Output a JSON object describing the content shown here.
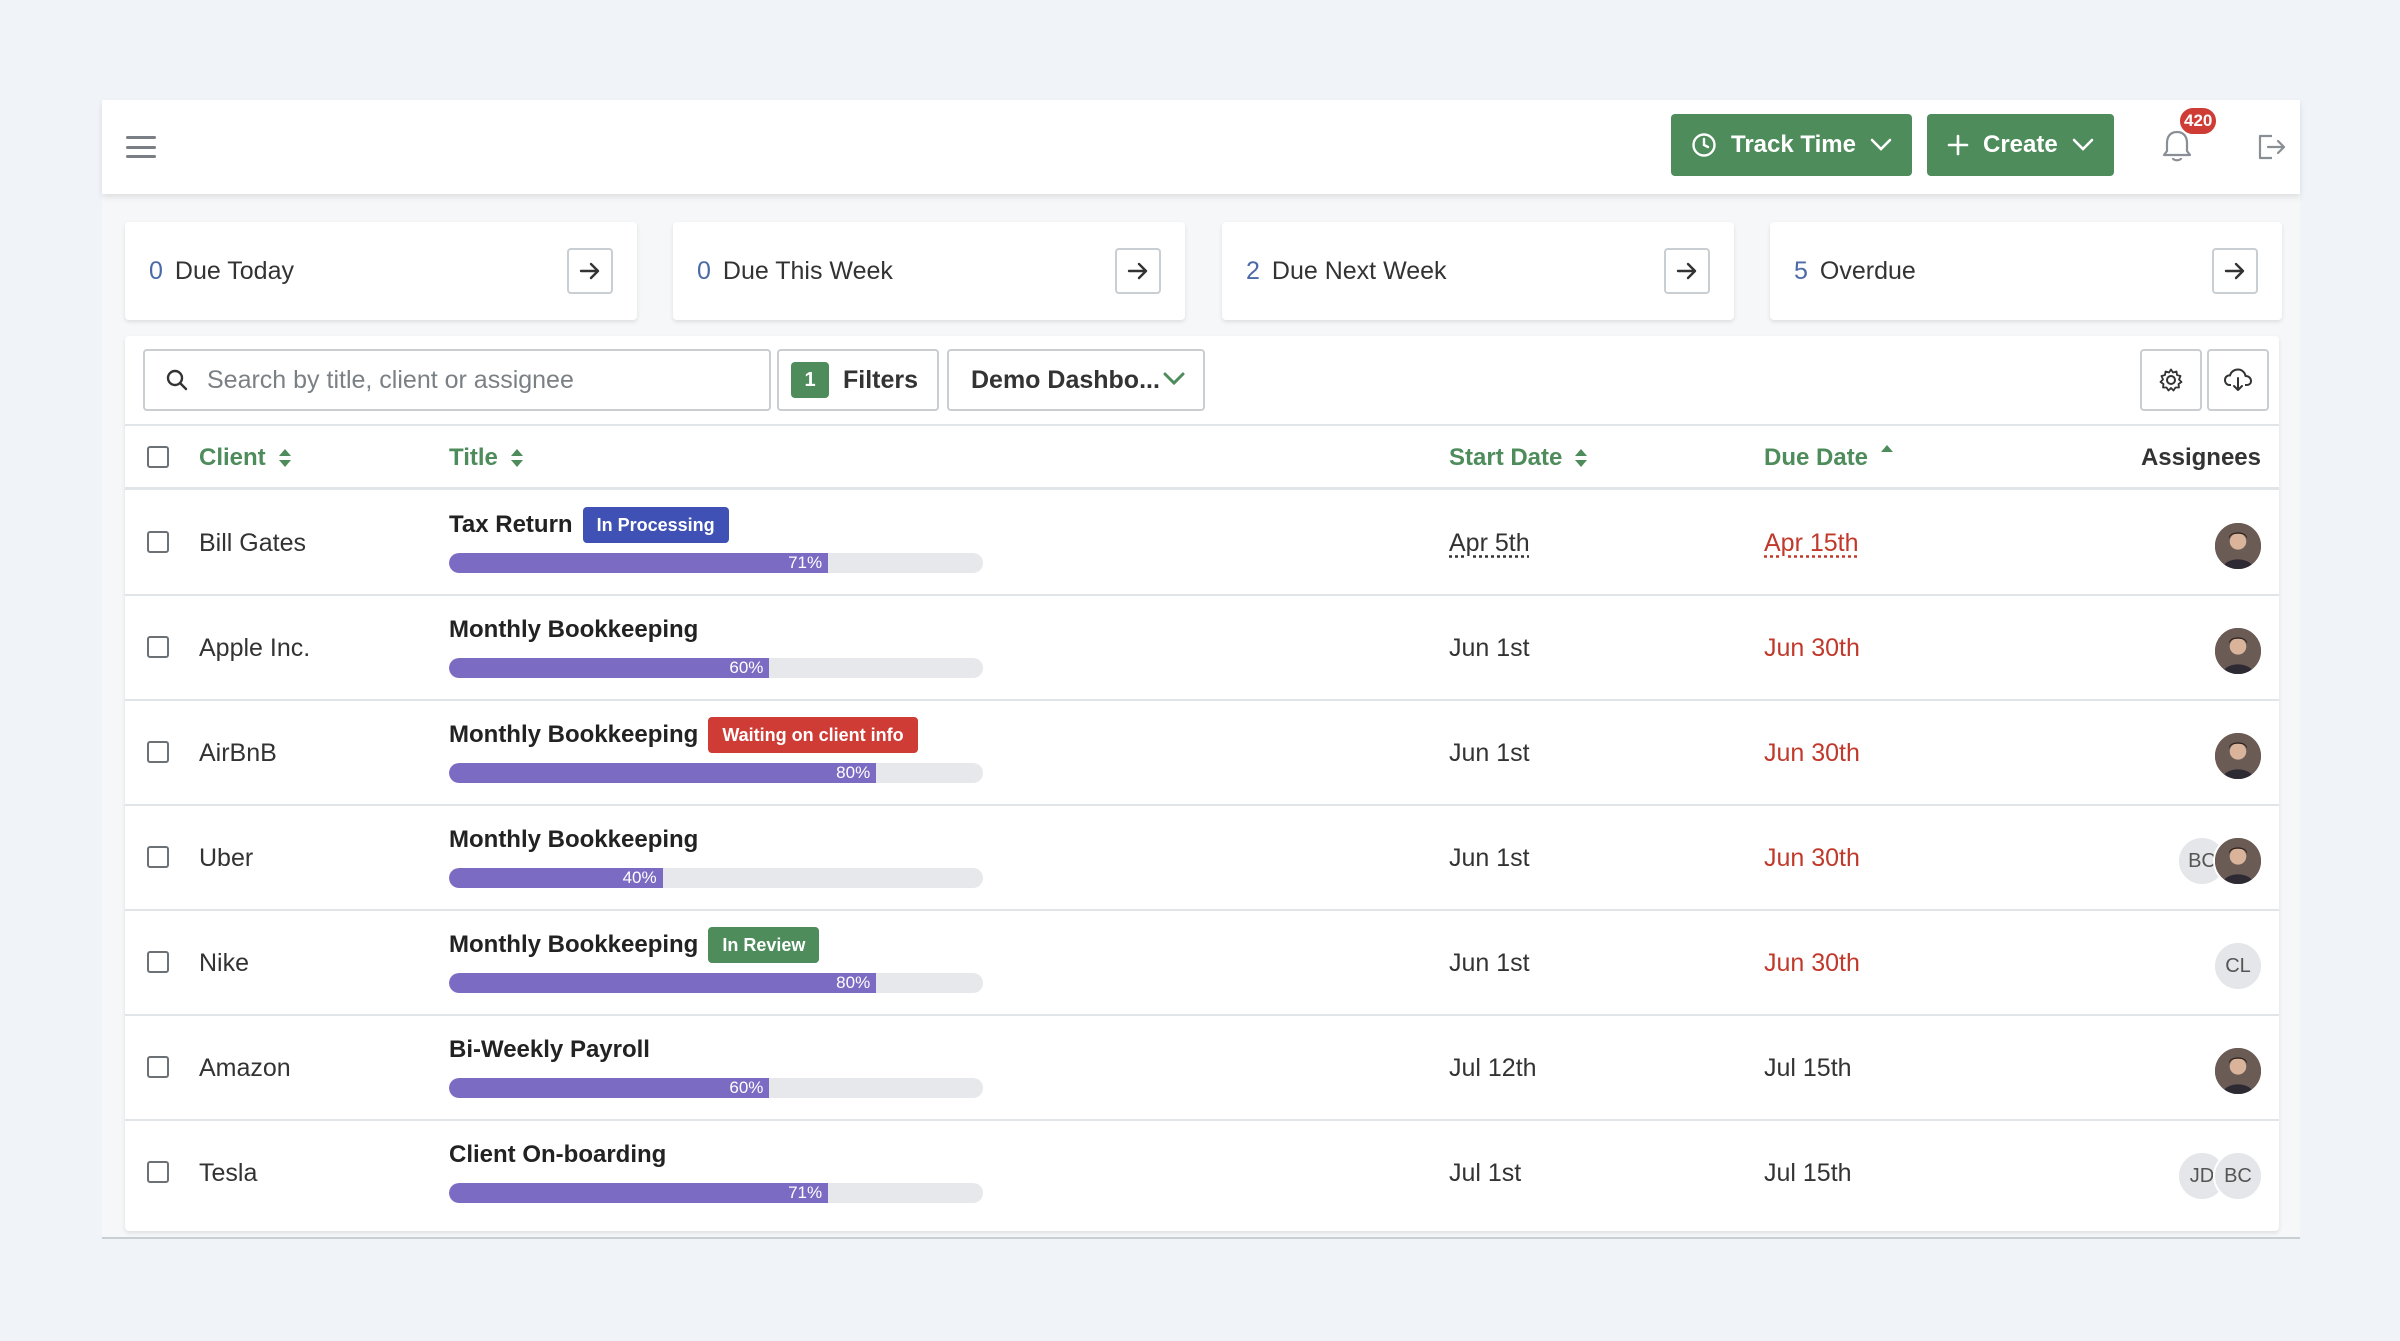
{
  "colors": {
    "brand_green": "#4e8c5b",
    "link_blue": "#4b6aa8",
    "progress_purple": "#7b6bc2",
    "due_red": "#c0392b",
    "badge_blue": "#3f51b5",
    "badge_red": "#cf3b35",
    "badge_green": "#4e8c5b"
  },
  "header": {
    "menu_icon": "hamburger-menu-icon",
    "track_time_label": "Track Time",
    "create_label": "Create",
    "notification_count": "420",
    "logout_icon": "logout-icon"
  },
  "summary_cards": [
    {
      "count": "0",
      "label": "Due Today"
    },
    {
      "count": "0",
      "label": "Due This Week"
    },
    {
      "count": "2",
      "label": "Due Next Week"
    },
    {
      "count": "5",
      "label": "Overdue"
    }
  ],
  "toolbar": {
    "search_placeholder": "Search by title, client or assignee",
    "filters_count": "1",
    "filters_label": "Filters",
    "dashboard_select": "Demo Dashbo..."
  },
  "table": {
    "columns": {
      "client": "Client",
      "title": "Title",
      "start_date": "Start Date",
      "due_date": "Due Date",
      "assignees": "Assignees"
    },
    "rows": [
      {
        "client": "Bill Gates",
        "title": "Tax Return",
        "badge": "In Processing",
        "badge_color": "#3f51b5",
        "progress": 71,
        "progress_label": "71%",
        "start": "Apr 5th",
        "due": "Apr 15th",
        "due_overdue": true,
        "underlined": true,
        "assignees": [
          {
            "type": "photo",
            "initials": ""
          }
        ]
      },
      {
        "client": "Apple Inc.",
        "title": "Monthly Bookkeeping",
        "badge": "",
        "badge_color": "",
        "progress": 60,
        "progress_label": "60%",
        "start": "Jun 1st",
        "due": "Jun 30th",
        "due_overdue": true,
        "underlined": false,
        "assignees": [
          {
            "type": "photo",
            "initials": ""
          }
        ]
      },
      {
        "client": "AirBnB",
        "title": "Monthly Bookkeeping",
        "badge": "Waiting on client info",
        "badge_color": "#cf3b35",
        "progress": 80,
        "progress_label": "80%",
        "start": "Jun 1st",
        "due": "Jun 30th",
        "due_overdue": true,
        "underlined": false,
        "assignees": [
          {
            "type": "photo",
            "initials": ""
          }
        ]
      },
      {
        "client": "Uber",
        "title": "Monthly Bookkeeping",
        "badge": "",
        "badge_color": "",
        "progress": 40,
        "progress_label": "40%",
        "start": "Jun 1st",
        "due": "Jun 30th",
        "due_overdue": true,
        "underlined": false,
        "assignees": [
          {
            "type": "initials",
            "initials": "BC"
          },
          {
            "type": "photo",
            "initials": ""
          }
        ]
      },
      {
        "client": "Nike",
        "title": "Monthly Bookkeeping",
        "badge": "In Review",
        "badge_color": "#4e8c5b",
        "progress": 80,
        "progress_label": "80%",
        "start": "Jun 1st",
        "due": "Jun 30th",
        "due_overdue": true,
        "underlined": false,
        "assignees": [
          {
            "type": "initials",
            "initials": "CL"
          }
        ]
      },
      {
        "client": "Amazon",
        "title": "Bi-Weekly Payroll",
        "badge": "",
        "badge_color": "",
        "progress": 60,
        "progress_label": "60%",
        "start": "Jul 12th",
        "due": "Jul 15th",
        "due_overdue": false,
        "underlined": false,
        "assignees": [
          {
            "type": "photo",
            "initials": ""
          }
        ]
      },
      {
        "client": "Tesla",
        "title": "Client On-boarding",
        "badge": "",
        "badge_color": "",
        "progress": 71,
        "progress_label": "71%",
        "start": "Jul 1st",
        "due": "Jul 15th",
        "due_overdue": false,
        "underlined": false,
        "assignees": [
          {
            "type": "initials",
            "initials": "JD"
          },
          {
            "type": "initials",
            "initials": "BC"
          }
        ]
      }
    ]
  }
}
